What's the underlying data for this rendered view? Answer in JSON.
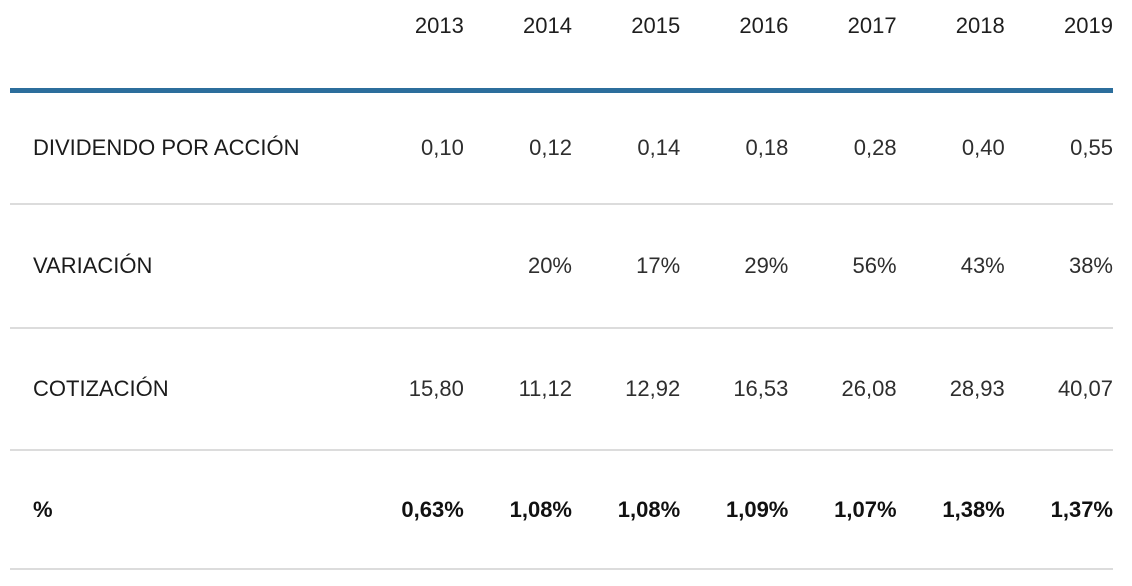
{
  "table": {
    "corner": "",
    "year_headers": [
      "2013",
      "2014",
      "2015",
      "2016",
      "2017",
      "2018",
      "2019"
    ],
    "rows": [
      {
        "label": "DIVIDENDO POR ACCIÓN",
        "values": [
          "0,10",
          "0,12",
          "0,14",
          "0,18",
          "0,28",
          "0,40",
          "0,55"
        ]
      },
      {
        "label": "VARIACIÓN",
        "values": [
          "",
          "20%",
          "17%",
          "29%",
          "56%",
          "43%",
          "38%"
        ]
      },
      {
        "label": "COTIZACIÓN",
        "values": [
          "15,80",
          "11,12",
          "12,92",
          "16,53",
          "26,08",
          "28,93",
          "40,07"
        ]
      },
      {
        "label": "%",
        "values": [
          "0,63%",
          "1,08%",
          "1,08%",
          "1,09%",
          "1,07%",
          "1,38%",
          "1,37%"
        ]
      }
    ],
    "colors": {
      "header_rule": "#2c6e9c",
      "row_divider": "#dcdcdc",
      "text": "#242424"
    }
  },
  "chart_data": {
    "type": "table",
    "title": "",
    "columns": [
      "",
      "2013",
      "2014",
      "2015",
      "2016",
      "2017",
      "2018",
      "2019"
    ],
    "rows": [
      [
        "DIVIDENDO POR ACCIÓN",
        "0,10",
        "0,12",
        "0,14",
        "0,18",
        "0,28",
        "0,40",
        "0,55"
      ],
      [
        "VARIACIÓN",
        "",
        "20%",
        "17%",
        "29%",
        "56%",
        "43%",
        "38%"
      ],
      [
        "COTIZACIÓN",
        "15,80",
        "11,12",
        "12,92",
        "16,53",
        "26,08",
        "28,93",
        "40,07"
      ],
      [
        "%",
        "0,63%",
        "1,08%",
        "1,08%",
        "1,09%",
        "1,07%",
        "1,38%",
        "1,37%"
      ]
    ],
    "layout_hints": {
      "value_alignment": "right",
      "decimal_separator": "comma",
      "bold_rows": [
        "%"
      ],
      "header_rule_color": "#2c6e9c"
    }
  }
}
